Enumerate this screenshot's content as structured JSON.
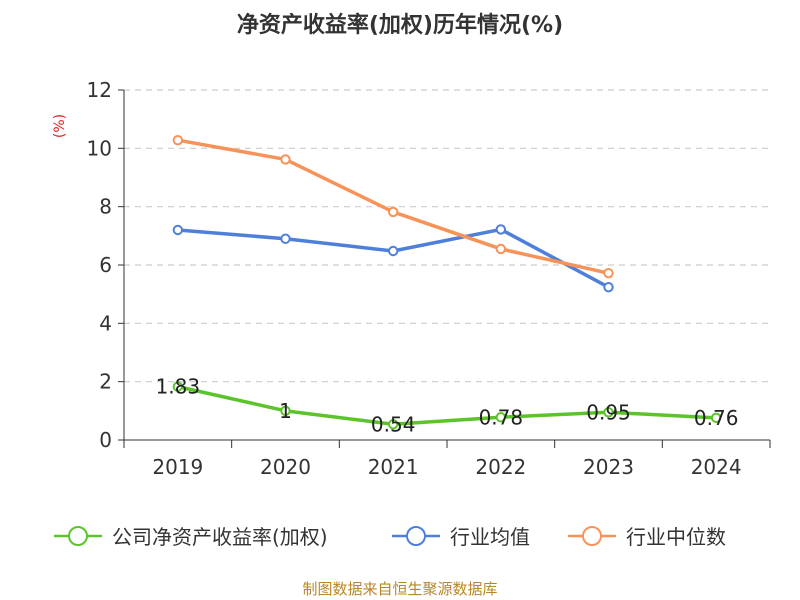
{
  "chart_data": {
    "type": "line",
    "title": "净资产收益率(加权)历年情况(%)",
    "ylabel": "(%)",
    "xlabel": "",
    "categories": [
      "2019",
      "2020",
      "2021",
      "2022",
      "2023",
      "2024"
    ],
    "ylim": [
      0,
      12
    ],
    "yticks": [
      0,
      2,
      4,
      6,
      8,
      10,
      12
    ],
    "grid": true,
    "legend_position": "bottom",
    "series": [
      {
        "name": "公司净资产收益率(加权)",
        "color": "#5cc42b",
        "values": [
          1.83,
          1,
          0.54,
          0.78,
          0.95,
          0.76
        ],
        "labels": [
          "1.83",
          "1",
          "0.54",
          "0.78",
          "0.95",
          "0.76"
        ]
      },
      {
        "name": "行业均值",
        "color": "#4e7fdb",
        "values": [
          7.2,
          6.9,
          6.48,
          7.22,
          5.24,
          null
        ]
      },
      {
        "name": "行业中位数",
        "color": "#f79358",
        "values": [
          10.28,
          9.62,
          7.82,
          6.55,
          5.72,
          null
        ]
      }
    ]
  },
  "footer": {
    "source": "制图数据来自恒生聚源数据库"
  }
}
